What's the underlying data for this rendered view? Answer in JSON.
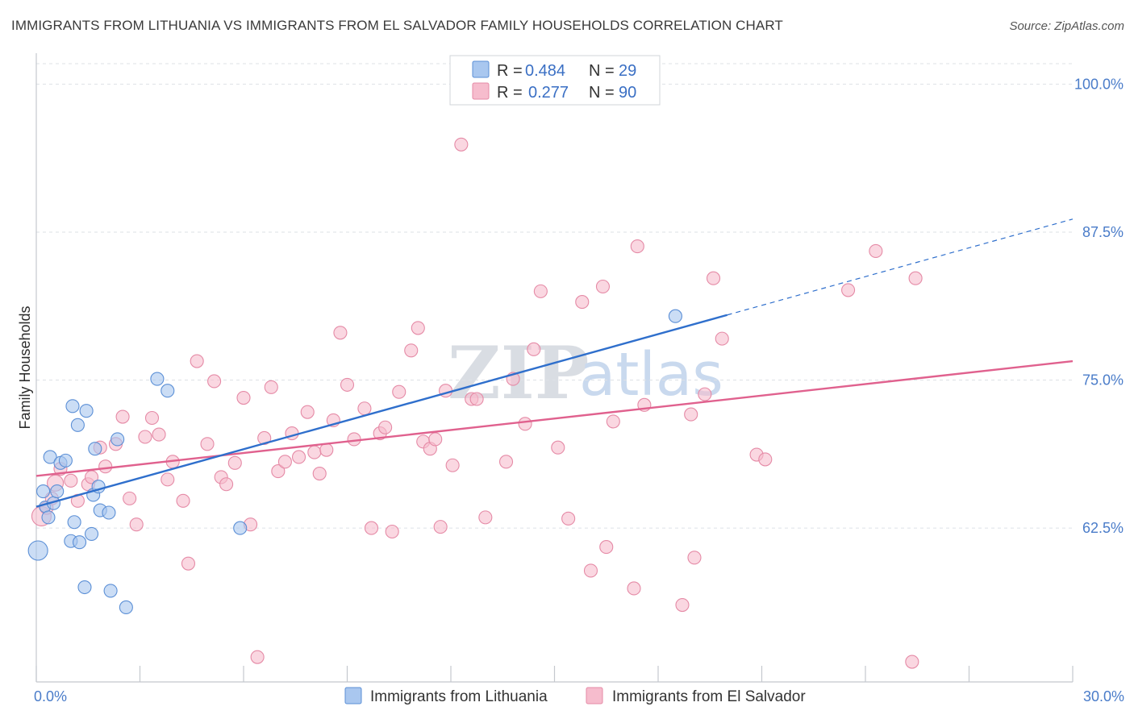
{
  "title": "IMMIGRANTS FROM LITHUANIA VS IMMIGRANTS FROM EL SALVADOR FAMILY HOUSEHOLDS CORRELATION CHART",
  "source": "Source: ZipAtlas.com",
  "watermark": {
    "zip": "ZIP",
    "atlas": "atlas"
  },
  "colors": {
    "blue_fill": "#a9c7ef",
    "blue_stroke": "#5b8fd6",
    "blue_line": "#2f6fcc",
    "pink_fill": "#f6bccd",
    "pink_stroke": "#e58aa6",
    "pink_line": "#e0618e",
    "grid": "#dde1e6",
    "tick_text": "#4a7cc9"
  },
  "legend": {
    "rows": [
      {
        "r_label": "R =",
        "r_value": "0.484",
        "n_label": "N =",
        "n_value": "29",
        "series": "lithuania"
      },
      {
        "r_label": "R =",
        "r_value": "0.277",
        "n_label": "N =",
        "n_value": "90",
        "series": "elsalvador"
      }
    ]
  },
  "chart_data": {
    "type": "scatter",
    "title": "IMMIGRANTS FROM LITHUANIA VS IMMIGRANTS FROM EL SALVADOR FAMILY HOUSEHOLDS CORRELATION CHART",
    "xlabel": "",
    "ylabel": "Family Households",
    "xlim": [
      0,
      30
    ],
    "ylim": [
      49.5,
      102
    ],
    "x_tick_labels": [
      {
        "value": 0,
        "label": "0.0%"
      },
      {
        "value": 30,
        "label": "30.0%"
      }
    ],
    "y_tick_labels": [
      {
        "value": 100,
        "label": "100.0%"
      },
      {
        "value": 87.5,
        "label": "87.5%"
      },
      {
        "value": 75,
        "label": "75.0%"
      },
      {
        "value": 62.5,
        "label": "62.5%"
      }
    ],
    "series": [
      {
        "name": "Immigrants from Lithuania",
        "key": "lithuania",
        "R": 0.484,
        "N": 29,
        "trend": {
          "x_start": 0.0,
          "y_start": 64.3,
          "x_end": 20.0,
          "y_end": 80.5,
          "dashed_to_x": 30.0,
          "dashed_to_y": 88.6
        },
        "points": [
          [
            0.05,
            60.6,
            12
          ],
          [
            0.2,
            65.6,
            8
          ],
          [
            0.25,
            64.3,
            7
          ],
          [
            0.35,
            63.4,
            8
          ],
          [
            0.4,
            68.5,
            8
          ],
          [
            0.5,
            64.6,
            8
          ],
          [
            0.6,
            65.6,
            8
          ],
          [
            0.7,
            68.0,
            8
          ],
          [
            0.85,
            68.2,
            8
          ],
          [
            1.0,
            61.4,
            8
          ],
          [
            1.05,
            72.8,
            8
          ],
          [
            1.1,
            63.0,
            8
          ],
          [
            1.2,
            71.2,
            8
          ],
          [
            1.25,
            61.3,
            8
          ],
          [
            1.4,
            57.5,
            8
          ],
          [
            1.45,
            72.4,
            8
          ],
          [
            1.6,
            62.0,
            8
          ],
          [
            1.65,
            65.3,
            8
          ],
          [
            1.7,
            69.2,
            8
          ],
          [
            1.8,
            66.0,
            8
          ],
          [
            1.85,
            64.0,
            8
          ],
          [
            2.1,
            63.8,
            8
          ],
          [
            2.15,
            57.2,
            8
          ],
          [
            2.35,
            70.0,
            8
          ],
          [
            2.6,
            55.8,
            8
          ],
          [
            3.5,
            75.1,
            8
          ],
          [
            3.8,
            74.1,
            8
          ],
          [
            5.9,
            62.5,
            8
          ],
          [
            18.5,
            80.4,
            8
          ]
        ]
      },
      {
        "name": "Immigrants from El Salvador",
        "key": "elsalvador",
        "R": 0.277,
        "N": 90,
        "trend": {
          "x_start": 0.0,
          "y_start": 66.9,
          "x_end": 30.0,
          "y_end": 76.6
        },
        "points": [
          [
            0.15,
            63.5,
            12
          ],
          [
            0.3,
            64.2,
            8
          ],
          [
            0.45,
            65.0,
            8
          ],
          [
            0.55,
            66.3,
            10
          ],
          [
            0.7,
            67.5,
            8
          ],
          [
            1.0,
            66.5,
            8
          ],
          [
            1.2,
            64.8,
            8
          ],
          [
            1.5,
            66.2,
            8
          ],
          [
            1.6,
            66.8,
            8
          ],
          [
            1.85,
            69.3,
            8
          ],
          [
            2.0,
            67.7,
            8
          ],
          [
            2.3,
            69.6,
            8
          ],
          [
            2.5,
            71.9,
            8
          ],
          [
            2.7,
            65.0,
            8
          ],
          [
            2.9,
            62.8,
            8
          ],
          [
            3.15,
            70.2,
            8
          ],
          [
            3.35,
            71.8,
            8
          ],
          [
            3.55,
            70.4,
            8
          ],
          [
            3.8,
            66.6,
            8
          ],
          [
            3.95,
            68.1,
            8
          ],
          [
            4.25,
            64.8,
            8
          ],
          [
            4.4,
            59.5,
            8
          ],
          [
            4.65,
            76.6,
            8
          ],
          [
            4.95,
            69.6,
            8
          ],
          [
            5.15,
            74.9,
            8
          ],
          [
            5.35,
            66.8,
            8
          ],
          [
            5.5,
            66.2,
            8
          ],
          [
            5.75,
            68.0,
            8
          ],
          [
            6.0,
            73.5,
            8
          ],
          [
            6.2,
            62.8,
            8
          ],
          [
            6.4,
            51.6,
            8
          ],
          [
            6.6,
            70.1,
            8
          ],
          [
            6.8,
            74.4,
            8
          ],
          [
            7.0,
            67.3,
            8
          ],
          [
            7.2,
            68.1,
            8
          ],
          [
            7.4,
            70.5,
            8
          ],
          [
            7.6,
            68.5,
            8
          ],
          [
            7.85,
            72.3,
            8
          ],
          [
            8.05,
            68.9,
            8
          ],
          [
            8.2,
            67.1,
            8
          ],
          [
            8.4,
            69.1,
            8
          ],
          [
            8.6,
            71.6,
            8
          ],
          [
            8.8,
            79.0,
            8
          ],
          [
            9.0,
            74.6,
            8
          ],
          [
            9.2,
            70.0,
            8
          ],
          [
            9.5,
            72.6,
            8
          ],
          [
            9.7,
            62.5,
            8
          ],
          [
            9.95,
            70.5,
            8
          ],
          [
            10.1,
            71.0,
            8
          ],
          [
            10.3,
            62.2,
            8
          ],
          [
            10.5,
            74.0,
            8
          ],
          [
            10.85,
            77.5,
            8
          ],
          [
            11.05,
            79.4,
            8
          ],
          [
            11.2,
            69.8,
            8
          ],
          [
            11.4,
            69.2,
            8
          ],
          [
            11.55,
            70.0,
            8
          ],
          [
            11.7,
            62.6,
            8
          ],
          [
            11.85,
            74.1,
            8
          ],
          [
            12.05,
            67.8,
            8
          ],
          [
            12.3,
            94.9,
            8
          ],
          [
            12.6,
            73.4,
            8
          ],
          [
            12.75,
            73.4,
            8
          ],
          [
            13.0,
            63.4,
            8
          ],
          [
            13.6,
            68.1,
            8
          ],
          [
            13.8,
            75.1,
            8
          ],
          [
            14.15,
            71.3,
            8
          ],
          [
            14.4,
            77.6,
            8
          ],
          [
            14.6,
            82.5,
            8
          ],
          [
            15.1,
            69.3,
            8
          ],
          [
            15.4,
            63.3,
            8
          ],
          [
            15.8,
            81.6,
            8
          ],
          [
            16.05,
            58.9,
            8
          ],
          [
            16.4,
            82.9,
            8
          ],
          [
            16.5,
            60.9,
            8
          ],
          [
            16.7,
            71.5,
            8
          ],
          [
            17.3,
            57.4,
            8
          ],
          [
            17.4,
            86.3,
            8
          ],
          [
            17.6,
            72.9,
            8
          ],
          [
            18.7,
            56.0,
            8
          ],
          [
            18.95,
            72.1,
            8
          ],
          [
            19.05,
            60.0,
            8
          ],
          [
            19.35,
            73.8,
            8
          ],
          [
            19.6,
            83.6,
            8
          ],
          [
            19.85,
            78.5,
            8
          ],
          [
            20.85,
            68.7,
            8
          ],
          [
            21.1,
            68.3,
            8
          ],
          [
            23.5,
            82.6,
            8
          ],
          [
            24.3,
            85.9,
            8
          ],
          [
            25.35,
            51.2,
            8
          ],
          [
            25.45,
            83.6,
            8
          ]
        ]
      }
    ]
  },
  "bottom_legend": [
    {
      "label": "Immigrants from Lithuania",
      "series": "lithuania"
    },
    {
      "label": "Immigrants from El Salvador",
      "series": "elsalvador"
    }
  ]
}
